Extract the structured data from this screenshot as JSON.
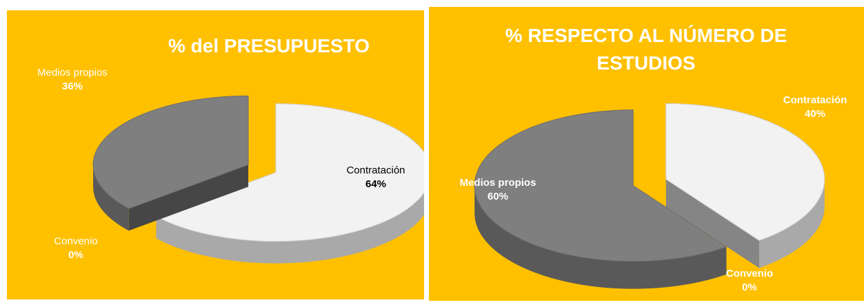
{
  "chart_data": [
    {
      "type": "pie",
      "title": "% del PRESUPUESTO",
      "categories": [
        "Contratación",
        "Medios propios",
        "Convenio"
      ],
      "values": [
        64,
        36,
        0
      ],
      "value_labels": [
        "64%",
        "36%",
        "0%"
      ],
      "colors": [
        "#f2f2f2",
        "#7f7f7f",
        "#404040"
      ]
    },
    {
      "type": "pie",
      "title": "% RESPECTO AL NÚMERO DE ESTUDIOS",
      "categories": [
        "Contratación",
        "Medios propios",
        "Convenio"
      ],
      "values": [
        40,
        60,
        0
      ],
      "value_labels": [
        "40%",
        "60%",
        "0%"
      ],
      "colors": [
        "#f2f2f2",
        "#7f7f7f",
        "#404040"
      ]
    }
  ]
}
